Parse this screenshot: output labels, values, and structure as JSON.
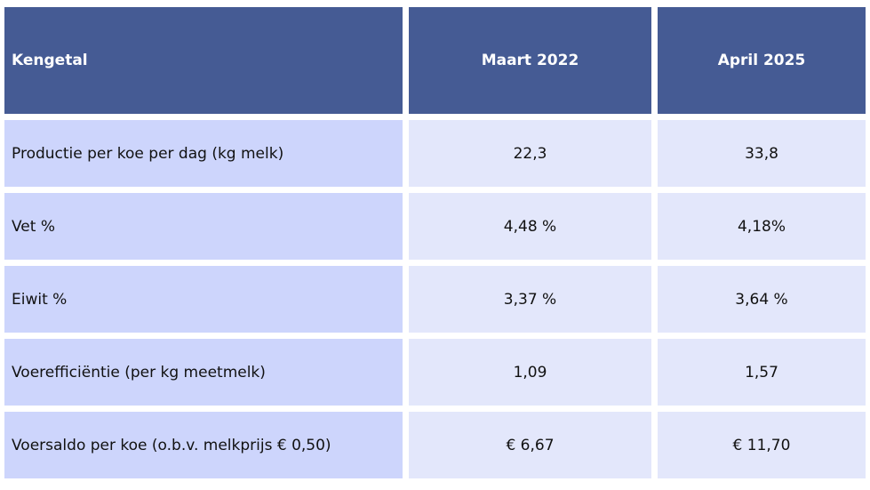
{
  "table": {
    "headers": [
      "Kengetal",
      "Maart 2022",
      "April 2025"
    ],
    "rows": [
      {
        "label": "Productie per koe per dag (kg melk)",
        "maart_2022": "22,3",
        "april_2025": "33,8"
      },
      {
        "label": "Vet %",
        "maart_2022": "4,48 %",
        "april_2025": "4,18%"
      },
      {
        "label": "Eiwit %",
        "maart_2022": "3,37 %",
        "april_2025": "3,64 %"
      },
      {
        "label": "Voerefficiëntie (per kg meetmelk)",
        "maart_2022": "1,09",
        "april_2025": "1,57"
      },
      {
        "label": "Voersaldo per koe (o.b.v. melkprijs € 0,50)",
        "maart_2022": "€ 6,67",
        "april_2025": "€ 11,70"
      }
    ]
  },
  "colors": {
    "header_bg": "#455b94",
    "label_bg": "#cdd5fc",
    "value_bg": "#e3e7fb"
  }
}
